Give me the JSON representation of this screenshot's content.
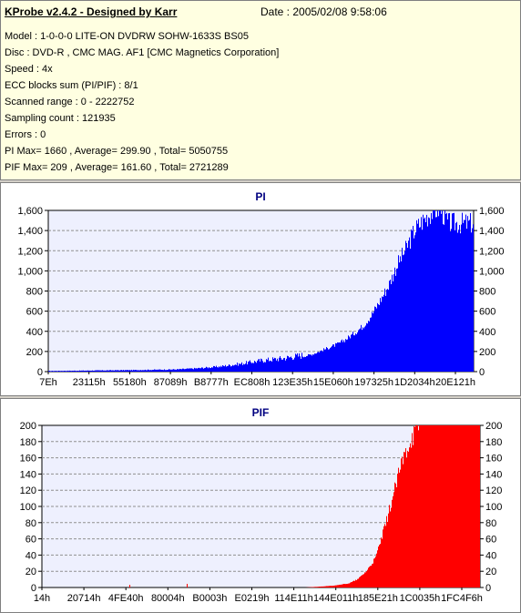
{
  "header": {
    "title": "KProbe v2.4.2 - Designed by Karr",
    "date": "Date : 2005/02/08 9:58:06",
    "lines": [
      "Model : 1-0-0-0 LITE-ON DVDRW SOHW-1633S BS05",
      "Disc : DVD-R , CMC MAG. AF1 [CMC Magnetics Corporation]",
      "Speed : 4x",
      "ECC blocks sum (PI/PIF) : 8/1",
      "Scanned range : 0 - 2222752",
      "Sampling count : 121935",
      "Errors : 0",
      "PI Max= 1660 , Average= 299.90 , Total= 5050755",
      "PIF Max= 209 , Average= 161.60 , Total= 2721289"
    ]
  },
  "colors": {
    "plot_bg": "#eef0fe",
    "pi_bar": "#0000ff",
    "pif_bar": "#ff0000",
    "title": "#000080",
    "grid": "#909090"
  },
  "chart_data": [
    {
      "id": "pi",
      "type": "bar",
      "title": "PI",
      "color": "#0000ff",
      "ylim": [
        0,
        1600
      ],
      "yticks": [
        0,
        200,
        400,
        600,
        800,
        1000,
        1200,
        1400,
        1600
      ],
      "ytick_labels": [
        "0",
        "200",
        "400",
        "600",
        "800",
        "1,000",
        "1,200",
        "1,400",
        "1,600"
      ],
      "xticks": [
        "7Eh",
        "23115h",
        "55180h",
        "87089h",
        "B8777h",
        "EC808h",
        "123E35h",
        "15E060h",
        "197325h",
        "1D2034h",
        "20E121h"
      ],
      "grid": true,
      "series_envelope": {
        "x": [
          0.0,
          0.05,
          0.1,
          0.2,
          0.3,
          0.35,
          0.4,
          0.45,
          0.5,
          0.55,
          0.6,
          0.62,
          0.65,
          0.68,
          0.7,
          0.72,
          0.74,
          0.76,
          0.78,
          0.8,
          0.82,
          0.84,
          0.86,
          0.88,
          0.9,
          0.92,
          0.94,
          1.0
        ],
        "y": [
          6,
          8,
          10,
          14,
          20,
          30,
          45,
          70,
          100,
          120,
          150,
          170,
          220,
          270,
          320,
          380,
          450,
          560,
          700,
          850,
          1050,
          1200,
          1380,
          1480,
          1560,
          1600,
          1450,
          1450
        ]
      },
      "max_value": 1660
    },
    {
      "id": "pif",
      "type": "bar",
      "title": "PIF",
      "color": "#ff0000",
      "ylim": [
        0,
        200
      ],
      "yticks": [
        0,
        20,
        40,
        60,
        80,
        100,
        120,
        140,
        160,
        180,
        200
      ],
      "ytick_labels": [
        "0",
        "20",
        "40",
        "60",
        "80",
        "100",
        "120",
        "140",
        "160",
        "180",
        "200"
      ],
      "xticks": [
        "14h",
        "20714h",
        "4FE40h",
        "80004h",
        "B0003h",
        "E0219h",
        "114E11h",
        "144E011h",
        "185E21h",
        "1C0035h",
        "1FC4F6h"
      ],
      "grid": true,
      "series_envelope": {
        "x": [
          0.0,
          0.6,
          0.66,
          0.7,
          0.72,
          0.74,
          0.76,
          0.78,
          0.8,
          0.82,
          0.84,
          0.86,
          0.88,
          0.9,
          1.0
        ],
        "y": [
          0,
          0,
          2,
          5,
          10,
          20,
          35,
          70,
          110,
          150,
          180,
          198,
          205,
          209,
          209
        ]
      },
      "max_value": 209
    }
  ]
}
